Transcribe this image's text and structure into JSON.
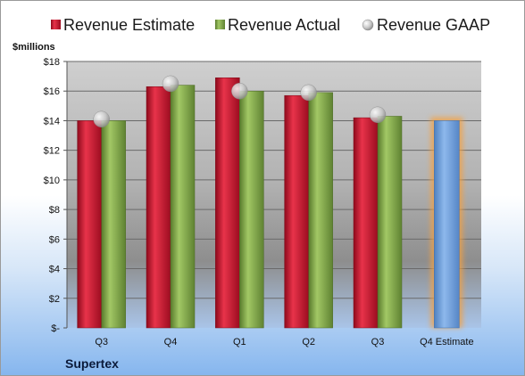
{
  "chart_data": {
    "type": "bar",
    "units_label": "$millions",
    "company": "Supertex",
    "categories": [
      "Q3",
      "Q4",
      "Q1",
      "Q2",
      "Q3",
      "Q4 Estimate"
    ],
    "series": [
      {
        "name": "Revenue Estimate",
        "kind": "bar",
        "color": "#c8102e",
        "values": [
          14.0,
          16.3,
          16.9,
          15.7,
          14.2,
          null
        ]
      },
      {
        "name": "Revenue Actual",
        "kind": "bar",
        "color": "#7fa845",
        "values": [
          14.0,
          16.4,
          16.0,
          15.9,
          14.3,
          null
        ]
      },
      {
        "name": "Revenue GAAP",
        "kind": "marker",
        "color": "#bfbfbf",
        "values": [
          14.1,
          16.5,
          16.0,
          15.9,
          14.4,
          null
        ]
      }
    ],
    "estimate_bar": {
      "category": "Q4 Estimate",
      "value": 14.0,
      "color": "#6fa0dc",
      "glow": "#f5a040"
    },
    "ylim": [
      0,
      18
    ],
    "yticks": [
      0,
      2,
      4,
      6,
      8,
      10,
      12,
      14,
      16,
      18
    ],
    "ytick_labels": [
      "$-",
      "$2",
      "$4",
      "$6",
      "$8",
      "$10",
      "$12",
      "$14",
      "$16",
      "$18"
    ],
    "grid": true,
    "legend_position": "top"
  }
}
